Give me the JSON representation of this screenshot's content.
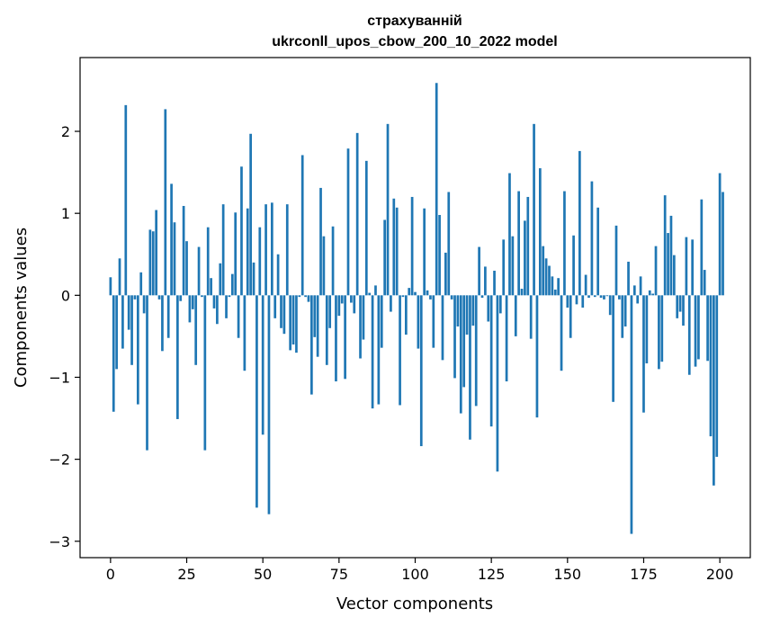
{
  "chart_data": {
    "type": "bar",
    "title_line1": "страхуванній",
    "title_line2": "ukrconll_upos_cbow_200_10_2022 model",
    "xlabel": "Vector components",
    "ylabel": "Components values",
    "xlim": [
      -10,
      210
    ],
    "ylim": [
      -3.2,
      2.9
    ],
    "xticks": [
      0,
      25,
      50,
      75,
      100,
      125,
      150,
      175,
      200
    ],
    "xtick_labels": [
      "0",
      "25",
      "50",
      "75",
      "100",
      "125",
      "150",
      "175",
      "200"
    ],
    "yticks": [
      -3,
      -2,
      -1,
      0,
      1,
      2
    ],
    "ytick_labels": [
      "−3",
      "−2",
      "−1",
      "0",
      "1",
      "2"
    ],
    "bar_color": "#1f77b4",
    "grid": false,
    "legend": "none",
    "values": [
      0.22,
      -1.42,
      -0.9,
      0.45,
      -0.65,
      2.32,
      -0.42,
      -0.85,
      -0.05,
      -1.33,
      0.28,
      -0.22,
      -1.89,
      0.8,
      0.78,
      1.04,
      -0.05,
      -0.68,
      2.27,
      -0.52,
      1.36,
      0.89,
      -1.51,
      -0.07,
      1.09,
      0.66,
      -0.33,
      -0.17,
      -0.85,
      0.59,
      -0.02,
      -1.89,
      0.83,
      0.21,
      -0.16,
      -0.35,
      0.39,
      1.11,
      -0.28,
      -0.02,
      0.26,
      1.01,
      -0.52,
      1.57,
      -0.92,
      1.06,
      1.97,
      0.4,
      -2.59,
      0.83,
      -1.7,
      1.11,
      -2.67,
      1.13,
      -0.28,
      0.5,
      -0.4,
      -0.47,
      1.11,
      -0.67,
      -0.6,
      -0.7,
      -0.02,
      1.71,
      -0.02,
      -0.08,
      -1.21,
      -0.51,
      -0.75,
      1.31,
      0.72,
      -0.85,
      -0.4,
      0.84,
      -1.05,
      -0.25,
      -0.1,
      -1.02,
      1.79,
      -0.09,
      -0.22,
      1.98,
      -0.77,
      -0.54,
      1.64,
      0.03,
      -1.38,
      0.12,
      -1.33,
      -0.64,
      0.92,
      2.09,
      -0.2,
      1.18,
      1.07,
      -1.34,
      -0.02,
      -0.48,
      0.09,
      1.2,
      0.04,
      -0.65,
      -1.84,
      1.06,
      0.06,
      -0.05,
      -0.64,
      2.59,
      0.98,
      -0.79,
      0.52,
      1.26,
      -0.05,
      -1.01,
      -0.38,
      -1.44,
      -1.12,
      -0.48,
      -1.76,
      -0.37,
      -1.35,
      0.59,
      -0.03,
      0.35,
      -0.32,
      -1.6,
      0.3,
      -2.15,
      -0.22,
      0.68,
      -1.05,
      1.49,
      0.72,
      -0.5,
      1.27,
      0.08,
      0.91,
      1.2,
      -0.53,
      2.09,
      -1.49,
      1.55,
      0.6,
      0.45,
      0.36,
      0.23,
      0.07,
      0.21,
      -0.92,
      1.27,
      -0.15,
      -0.52,
      0.73,
      -0.11,
      1.76,
      -0.15,
      0.25,
      -0.03,
      1.39,
      -0.02,
      1.07,
      -0.03,
      -0.05,
      -0.01,
      -0.24,
      -1.3,
      0.85,
      -0.05,
      -0.52,
      -0.38,
      0.41,
      -2.91,
      0.12,
      -0.1,
      0.23,
      -1.43,
      -0.83,
      0.06,
      0.02,
      0.6,
      -0.9,
      -0.81,
      1.22,
      0.76,
      0.97,
      0.49,
      -0.28,
      -0.2,
      -0.37,
      0.71,
      -0.97,
      0.68,
      -0.87,
      -0.78,
      1.17,
      0.31,
      -0.8,
      -1.72,
      -2.32,
      -1.97,
      1.49,
      1.26
    ]
  }
}
